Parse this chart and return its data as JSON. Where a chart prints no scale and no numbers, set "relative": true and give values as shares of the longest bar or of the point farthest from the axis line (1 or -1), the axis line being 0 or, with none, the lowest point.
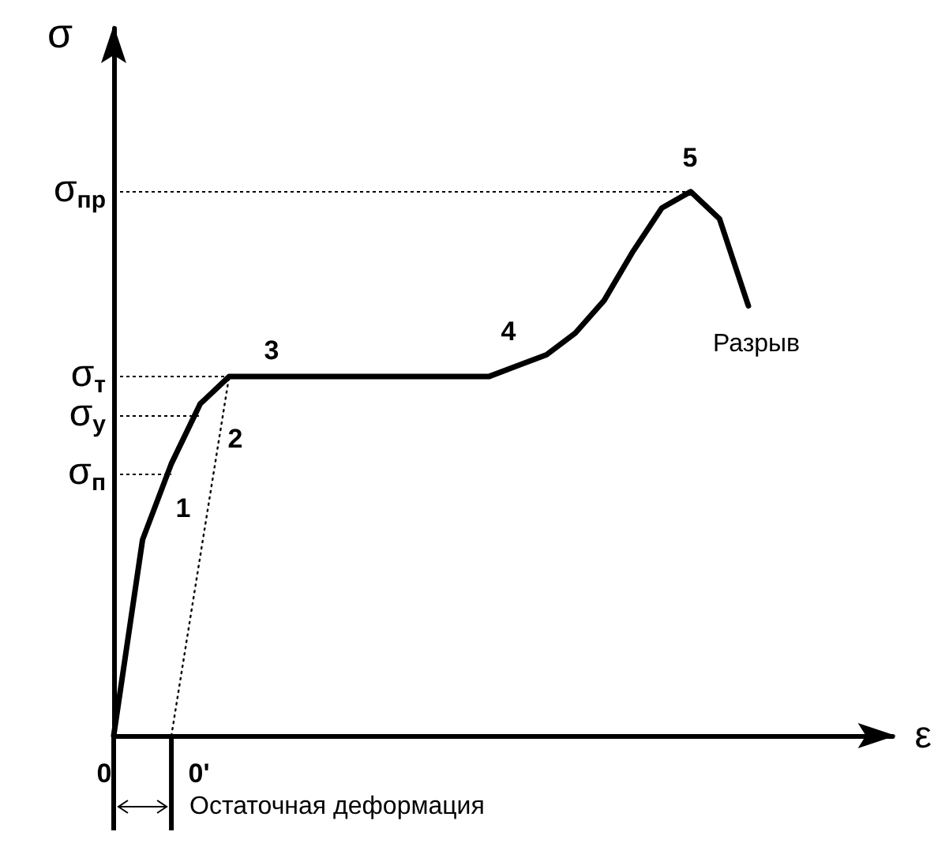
{
  "chart_data": {
    "type": "line",
    "relative": true,
    "xlabel": "ε",
    "ylabel": "σ",
    "marker": "none",
    "line_style": "solid",
    "grid": false,
    "categories": [
      null,
      null,
      null,
      null,
      null,
      null,
      null,
      null,
      null,
      null,
      null,
      null,
      null,
      null,
      null,
      null,
      null,
      null,
      null,
      null,
      null,
      null,
      null
    ],
    "series": [
      {
        "color": "#000000",
        "values": [
          0,
          0.36,
          0.5,
          0.61,
          0.66,
          0.66,
          0.66,
          0.66,
          0.66,
          0.66,
          0.66,
          0.66,
          0.66,
          0.66,
          0.68,
          0.7,
          0.74,
          0.8,
          0.89,
          0.97,
          1.0,
          0.95,
          0.79
        ]
      },
      {
        "color": "#000000",
        "line_style": "dotted",
        "values": [
          null,
          null,
          0,
          0.33,
          0.66,
          null,
          null,
          null,
          null,
          null,
          null,
          null,
          null,
          null,
          null,
          null,
          null,
          null,
          null,
          null,
          null,
          null,
          null
        ]
      }
    ],
    "ref_lines": [
      {
        "axis": "y",
        "value": 1.0,
        "label": "σ$_{пр}$",
        "line_style": "dotted"
      },
      {
        "axis": "y",
        "value": 0.66,
        "label": "σ$_{т}$",
        "line_style": "dotted"
      },
      {
        "axis": "y",
        "value": 0.587,
        "label": "σ$_{у}$",
        "line_style": "dotted"
      },
      {
        "axis": "y",
        "value": 0.48,
        "label": "σ$_{п}$",
        "line_style": "dotted"
      }
    ],
    "annotations": [
      "1",
      "2",
      "3",
      "4",
      "5",
      "Разрыв",
      "0",
      "0'",
      "Остаточная деформация"
    ]
  }
}
